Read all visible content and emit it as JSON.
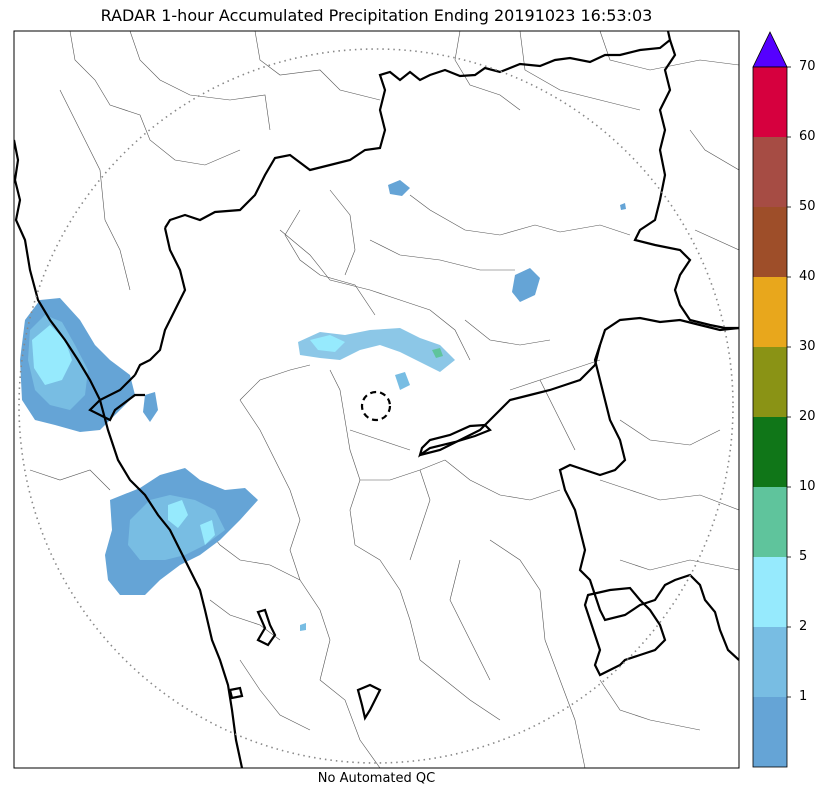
{
  "title": "RADAR 1-hour Accumulated Precipitation Ending 20191023 16:53:03",
  "footer": "No Automated QC",
  "colorbar": {
    "bins": [
      {
        "label": "1",
        "color": "#65a4d6"
      },
      {
        "label": "2",
        "color": "#78bde3"
      },
      {
        "label": "5",
        "color": "#96eafd"
      },
      {
        "label": "10",
        "color": "#5fc49c"
      },
      {
        "label": "20",
        "color": "#107618"
      },
      {
        "label": "30",
        "color": "#8a9315"
      },
      {
        "label": "40",
        "color": "#e8a71c"
      },
      {
        "label": "50",
        "color": "#9e4e29"
      },
      {
        "label": "60",
        "color": "#a64c44"
      },
      {
        "label": "70",
        "color": "#d6003e"
      }
    ],
    "extend_max_color": "#5500ff",
    "units_labels": [
      "1",
      "2",
      "5",
      "10",
      "20",
      "30",
      "40",
      "50",
      "60",
      "70"
    ]
  },
  "map": {
    "range_ring": "dotted",
    "radar_marker": "dashed-circle",
    "state_border_color": "#000000",
    "district_border_color": "#555555"
  }
}
